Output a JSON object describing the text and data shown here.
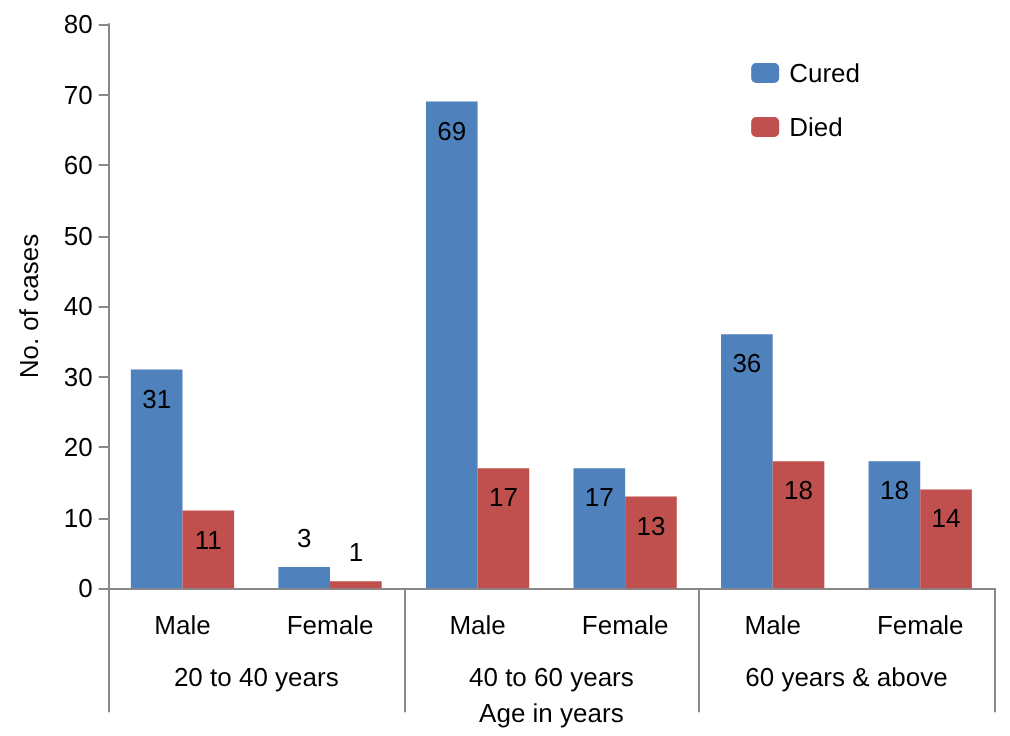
{
  "chart_data": {
    "type": "bar",
    "ylabel": "No. of cases",
    "xlabel": "Age in years",
    "categories": [
      "Male",
      "Female",
      "Male",
      "Female",
      "Male",
      "Female"
    ],
    "annotations": [
      "20 to 40 years",
      "40 to 60 years",
      "60 years & above"
    ],
    "series": [
      {
        "name": "Cured",
        "color": "#4f81bd",
        "values": [
          31,
          3,
          69,
          17,
          36,
          18
        ]
      },
      {
        "name": "Died",
        "color": "#c0504d",
        "values": [
          11,
          1,
          17,
          13,
          18,
          14
        ]
      }
    ],
    "ylim": [
      0,
      80
    ],
    "yticks": [
      0,
      10,
      20,
      30,
      40,
      50,
      60,
      70,
      80
    ],
    "grid": false,
    "legend": "top right",
    "data_labels": true
  }
}
